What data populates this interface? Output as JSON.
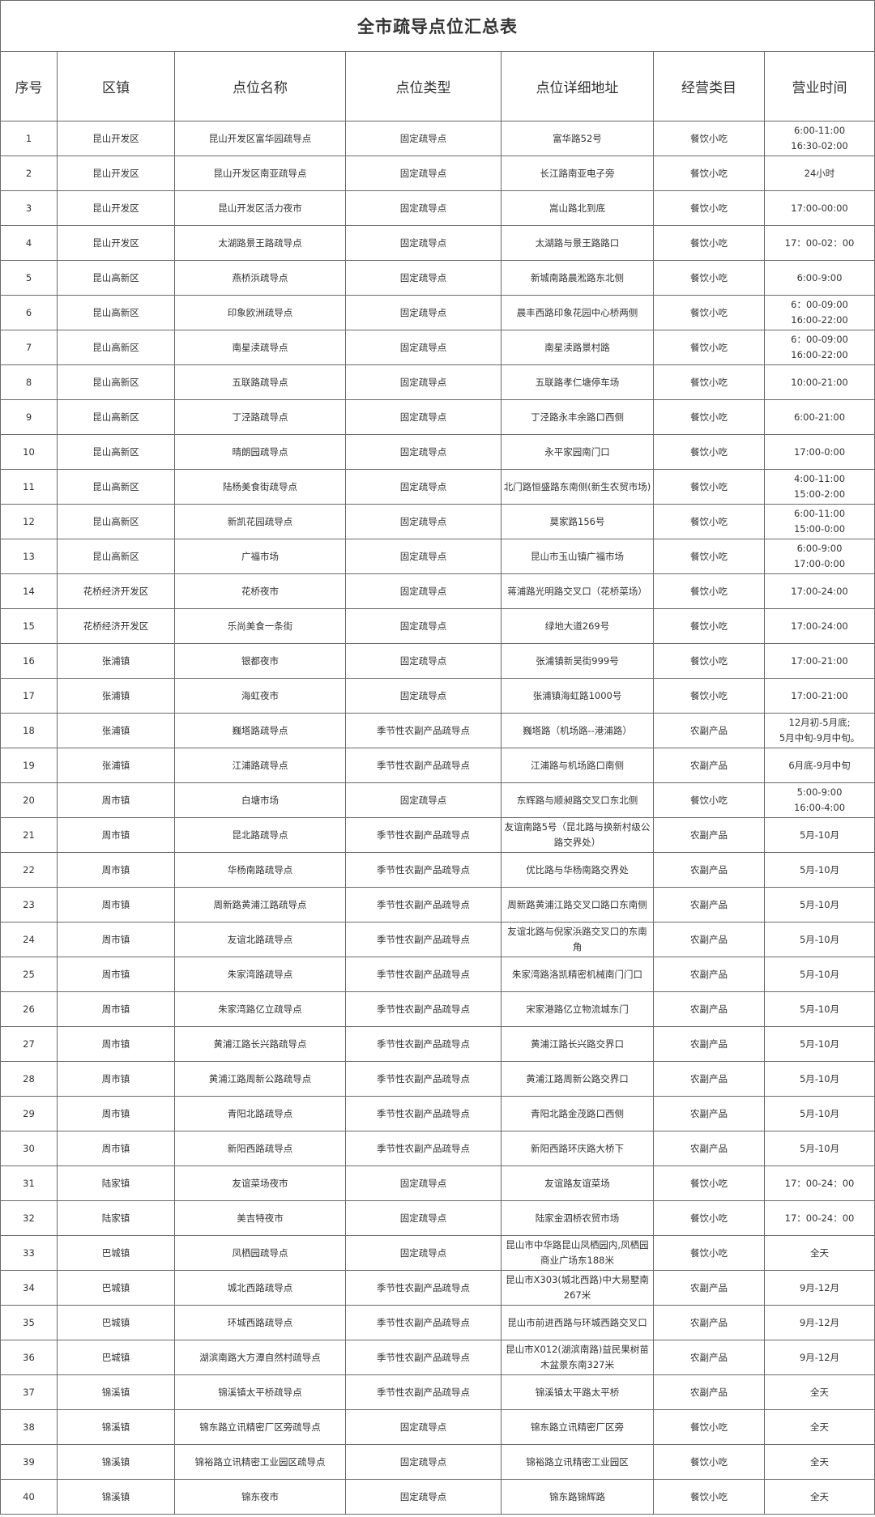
{
  "title": "全市疏导点位汇总表",
  "headers": [
    "序号",
    "区镇",
    "点位名称",
    "点位类型",
    "点位详细地址",
    "经营类目",
    "营业时间"
  ],
  "rows": [
    [
      "1",
      "昆山开发区",
      "昆山开发区富华园疏导点",
      "固定疏导点",
      "富华路52号",
      "餐饮小吃",
      "6:00-11:00\n16:30-02:00"
    ],
    [
      "2",
      "昆山开发区",
      "昆山开发区南亚疏导点",
      "固定疏导点",
      "长江路南亚电子旁",
      "餐饮小吃",
      "24小时"
    ],
    [
      "3",
      "昆山开发区",
      "昆山开发区活力夜市",
      "固定疏导点",
      "嵩山路北到底",
      "餐饮小吃",
      "17:00-00:00"
    ],
    [
      "4",
      "昆山开发区",
      "太湖路景王路疏导点",
      "固定疏导点",
      "太湖路与景王路路口",
      "餐饮小吃",
      "17：00-02：00"
    ],
    [
      "5",
      "昆山高新区",
      "燕桥浜疏导点",
      "固定疏导点",
      "新城南路晨淞路东北侧",
      "餐饮小吃",
      "6:00-9:00"
    ],
    [
      "6",
      "昆山高新区",
      "印象欧洲疏导点",
      "固定疏导点",
      "晨丰西路印象花园中心桥两侧",
      "餐饮小吃",
      "6：00-09:00\n16:00-22:00"
    ],
    [
      "7",
      "昆山高新区",
      "南星渎疏导点",
      "固定疏导点",
      "南星渎路景村路",
      "餐饮小吃",
      "6：00-09:00\n16:00-22:00"
    ],
    [
      "8",
      "昆山高新区",
      "五联路疏导点",
      "固定疏导点",
      "五联路孝仁塘停车场",
      "餐饮小吃",
      "10:00-21:00"
    ],
    [
      "9",
      "昆山高新区",
      "丁泾路疏导点",
      "固定疏导点",
      "丁泾路永丰余路口西侧",
      "餐饮小吃",
      "6:00-21:00"
    ],
    [
      "10",
      "昆山高新区",
      "晴朗园疏导点",
      "固定疏导点",
      "永平家园南门口",
      "餐饮小吃",
      "17:00-0:00"
    ],
    [
      "11",
      "昆山高新区",
      "陆杨美食街疏导点",
      "固定疏导点",
      "北门路恒盛路东南侧(新生农贸市场)",
      "餐饮小吃",
      "4:00-11:00\n15:00-2:00"
    ],
    [
      "12",
      "昆山高新区",
      "新凯花园疏导点",
      "固定疏导点",
      "莫家路156号",
      "餐饮小吃",
      "6:00-11:00\n15:00-0:00"
    ],
    [
      "13",
      "昆山高新区",
      "广福市场",
      "固定疏导点",
      "昆山市玉山镇广福市场",
      "餐饮小吃",
      "6:00-9:00\n17:00-0:00"
    ],
    [
      "14",
      "花桥经济开发区",
      "花桥夜市",
      "固定疏导点",
      "蒋浦路光明路交叉口（花桥菜场）",
      "餐饮小吃",
      "17:00-24:00"
    ],
    [
      "15",
      "花桥经济开发区",
      "乐尚美食一条街",
      "固定疏导点",
      "绿地大道269号",
      "餐饮小吃",
      "17:00-24:00"
    ],
    [
      "16",
      "张浦镇",
      "银都夜市",
      "固定疏导点",
      "张浦镇新吴街999号",
      "餐饮小吃",
      "17:00-21:00"
    ],
    [
      "17",
      "张浦镇",
      "海虹夜市",
      "固定疏导点",
      "张浦镇海虹路1000号",
      "餐饮小吃",
      "17:00-21:00"
    ],
    [
      "18",
      "张浦镇",
      "巍塔路疏导点",
      "季节性农副产品疏导点",
      "巍塔路（机场路--港浦路）",
      "农副产品",
      "12月初-5月底;\n5月中旬-9月中旬。"
    ],
    [
      "19",
      "张浦镇",
      "江浦路疏导点",
      "季节性农副产品疏导点",
      "江浦路与机场路口南侧",
      "农副产品",
      "6月底-9月中旬"
    ],
    [
      "20",
      "周市镇",
      "白塘市场",
      "固定疏导点",
      "东辉路与顺昶路交叉口东北侧",
      "餐饮小吃",
      "5:00-9:00\n16:00-4:00"
    ],
    [
      "21",
      "周市镇",
      "昆北路疏导点",
      "季节性农副产品疏导点",
      "友谊南路5号（昆北路与换新村级公路交界处）",
      "农副产品",
      "5月-10月"
    ],
    [
      "22",
      "周市镇",
      "华杨南路疏导点",
      "季节性农副产品疏导点",
      "优比路与华杨南路交界处",
      "农副产品",
      "5月-10月"
    ],
    [
      "23",
      "周市镇",
      "周新路黄浦江路疏导点",
      "季节性农副产品疏导点",
      "周新路黄浦江路交叉口路口东南侧",
      "农副产品",
      "5月-10月"
    ],
    [
      "24",
      "周市镇",
      "友谊北路疏导点",
      "季节性农副产品疏导点",
      "友谊北路与倪家浜路交叉口的东南角",
      "农副产品",
      "5月-10月"
    ],
    [
      "25",
      "周市镇",
      "朱家湾路疏导点",
      "季节性农副产品疏导点",
      "朱家湾路洛凯精密机械南门门口",
      "农副产品",
      "5月-10月"
    ],
    [
      "26",
      "周市镇",
      "朱家湾路亿立疏导点",
      "季节性农副产品疏导点",
      "宋家港路亿立物流城东门",
      "农副产品",
      "5月-10月"
    ],
    [
      "27",
      "周市镇",
      "黄浦江路长兴路疏导点",
      "季节性农副产品疏导点",
      "黄浦江路长兴路交界口",
      "农副产品",
      "5月-10月"
    ],
    [
      "28",
      "周市镇",
      "黄浦江路周新公路疏导点",
      "季节性农副产品疏导点",
      "黄浦江路周新公路交界口",
      "农副产品",
      "5月-10月"
    ],
    [
      "29",
      "周市镇",
      "青阳北路疏导点",
      "季节性农副产品疏导点",
      "青阳北路金茂路口西侧",
      "农副产品",
      "5月-10月"
    ],
    [
      "30",
      "周市镇",
      "新阳西路疏导点",
      "季节性农副产品疏导点",
      "新阳西路环庆路大桥下",
      "农副产品",
      "5月-10月"
    ],
    [
      "31",
      "陆家镇",
      "友谊菜场夜市",
      "固定疏导点",
      "友谊路友谊菜场",
      "餐饮小吃",
      "17：00-24：00"
    ],
    [
      "32",
      "陆家镇",
      "美吉特夜市",
      "固定疏导点",
      "陆家金泗桥农贸市场",
      "餐饮小吃",
      "17：00-24：00"
    ],
    [
      "33",
      "巴城镇",
      "凤栖园疏导点",
      "固定疏导点",
      "昆山市中华路昆山凤栖园内,凤栖园商业广场东188米",
      "餐饮小吃",
      "全天"
    ],
    [
      "34",
      "巴城镇",
      "城北西路疏导点",
      "季节性农副产品疏导点",
      "昆山市X303(城北西路)中大易墅南267米",
      "农副产品",
      "9月-12月"
    ],
    [
      "35",
      "巴城镇",
      "环城西路疏导点",
      "季节性农副产品疏导点",
      "昆山市前进西路与环城西路交叉口",
      "农副产品",
      "9月-12月"
    ],
    [
      "36",
      "巴城镇",
      "湖滨南路大方潭自然村疏导点",
      "季节性农副产品疏导点",
      "昆山市X012(湖滨南路)益民果树苗木盆景东南327米",
      "农副产品",
      "9月-12月"
    ],
    [
      "37",
      "锦溪镇",
      "锦溪镇太平桥疏导点",
      "季节性农副产品疏导点",
      "锦溪镇太平路太平桥",
      "农副产品",
      "全天"
    ],
    [
      "38",
      "锦溪镇",
      "锦东路立讯精密厂区旁疏导点",
      "固定疏导点",
      "锦东路立讯精密厂区旁",
      "餐饮小吃",
      "全天"
    ],
    [
      "39",
      "锦溪镇",
      "锦裕路立讯精密工业园区疏导点",
      "固定疏导点",
      "锦裕路立讯精密工业园区",
      "餐饮小吃",
      "全天"
    ],
    [
      "40",
      "锦溪镇",
      "锦东夜市",
      "固定疏导点",
      "锦东路锦辉路",
      "餐饮小吃",
      "全天"
    ]
  ]
}
